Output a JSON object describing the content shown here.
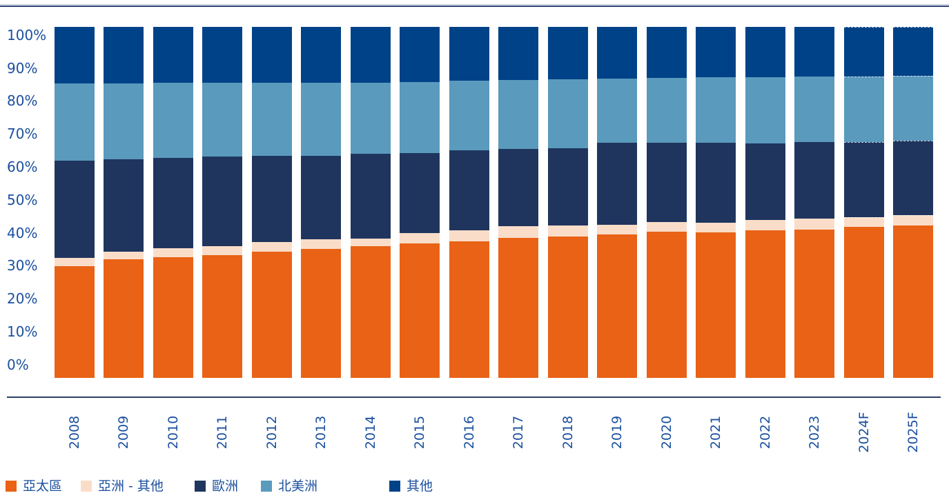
{
  "chart_data": {
    "type": "bar",
    "variant": "stacked-100-percent",
    "title": "",
    "xlabel": "",
    "ylabel": "",
    "unit": "%",
    "grid": false,
    "legend_position": "bottom",
    "categories": [
      "2008",
      "2009",
      "2010",
      "2011",
      "2012",
      "2013",
      "2014",
      "2015",
      "2016",
      "2017",
      "2018",
      "2019",
      "2020",
      "2021",
      "2022",
      "2023",
      "2024F",
      "2025F"
    ],
    "forecast_categories": [
      "2024F",
      "2025F"
    ],
    "series": [
      {
        "key": "asia-pacific",
        "name": "亞太區",
        "color": "#E96215",
        "values": [
          31.8,
          33.7,
          34.4,
          35.0,
          35.9,
          36.7,
          37.6,
          38.4,
          39.0,
          39.9,
          40.3,
          40.9,
          41.7,
          41.4,
          42.0,
          42.3,
          43.0,
          43.4
        ]
      },
      {
        "key": "asia-other",
        "name": "亞洲 - 其他",
        "color": "#FADDC9",
        "values": [
          2.4,
          2.2,
          2.5,
          2.5,
          2.9,
          2.7,
          2.1,
          2.8,
          3.0,
          3.3,
          3.1,
          2.7,
          2.8,
          2.9,
          2.9,
          3.1,
          2.8,
          2.9
        ]
      },
      {
        "key": "europe",
        "name": "歐洲",
        "color": "#1F355E",
        "values": [
          27.7,
          26.4,
          25.7,
          25.5,
          24.4,
          23.9,
          24.1,
          22.8,
          22.8,
          22.1,
          22.1,
          23.3,
          22.4,
          22.6,
          21.9,
          21.7,
          21.4,
          21.3
        ]
      },
      {
        "key": "north-america",
        "name": "北美洲",
        "color": "#5A9ABD",
        "values": [
          22.0,
          21.6,
          21.4,
          21.1,
          20.9,
          20.7,
          20.3,
          20.2,
          19.9,
          19.6,
          19.6,
          18.3,
          18.6,
          18.8,
          18.9,
          18.7,
          18.7,
          18.4
        ]
      },
      {
        "key": "other",
        "name": "其他",
        "color": "#004287",
        "values": [
          16.1,
          16.1,
          16.0,
          15.9,
          15.9,
          16.0,
          15.9,
          15.8,
          15.3,
          15.1,
          14.9,
          14.8,
          14.5,
          14.3,
          14.3,
          14.2,
          14.1,
          14.0
        ]
      }
    ],
    "y_axis": {
      "min": 0,
      "max": 100,
      "ticks": [
        "100%",
        "90%",
        "80%",
        "70%",
        "60%",
        "50%",
        "40%",
        "30%",
        "20%",
        "10%",
        "0%"
      ]
    }
  },
  "style": {
    "text_color": "#1A4F9E",
    "axis_line_color": "#2B3F66",
    "top_rule_dark": "#2B3F70",
    "top_rule_light": "#B6C2D9",
    "background": "#FFFFFF"
  }
}
